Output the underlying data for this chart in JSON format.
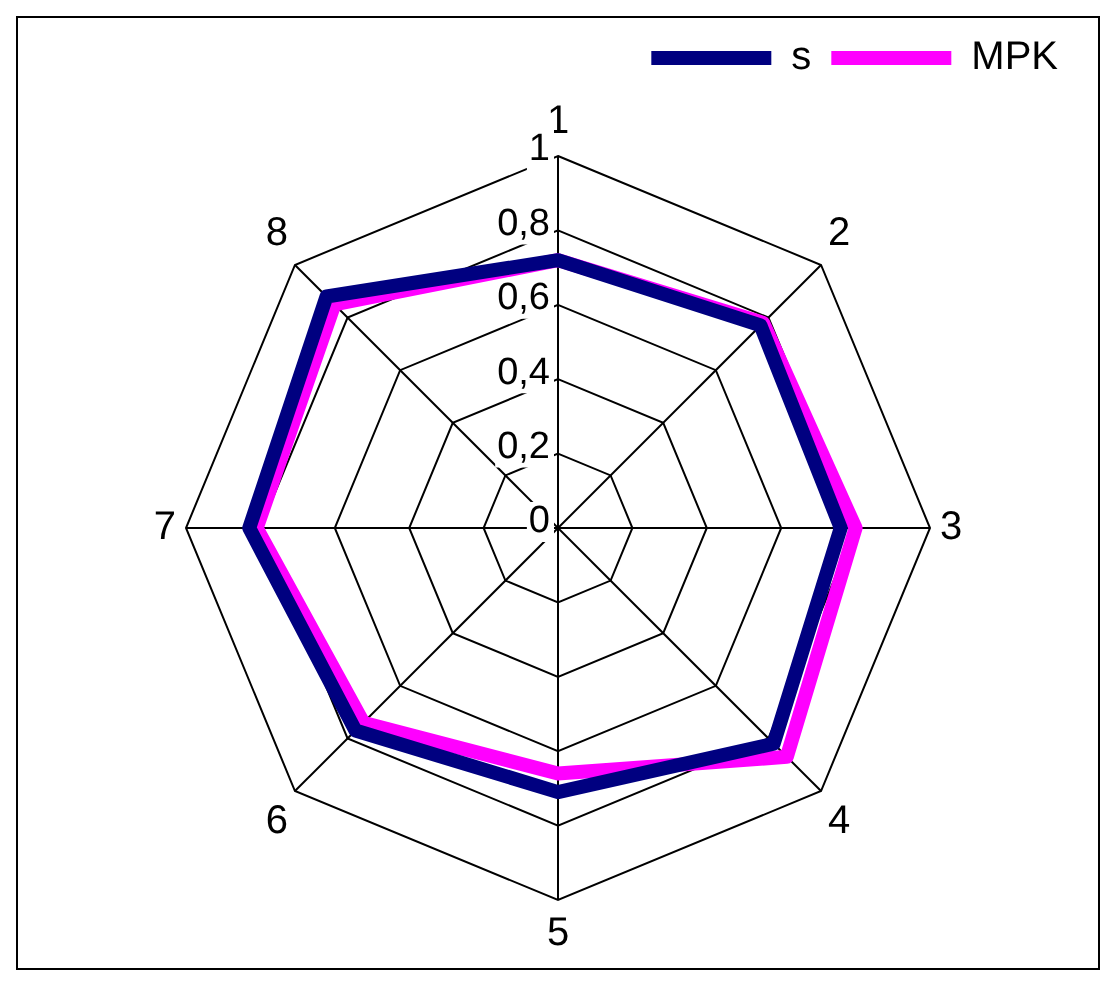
{
  "chart_data": {
    "type": "radar",
    "categories": [
      "1",
      "2",
      "3",
      "4",
      "5",
      "6",
      "7",
      "8"
    ],
    "series": [
      {
        "name": "s",
        "color": "#000080",
        "values": [
          0.72,
          0.77,
          0.76,
          0.82,
          0.71,
          0.77,
          0.83,
          0.88
        ]
      },
      {
        "name": "MPK",
        "color": "#ff00ff",
        "values": [
          0.72,
          0.78,
          0.8,
          0.87,
          0.66,
          0.74,
          0.81,
          0.85
        ]
      }
    ],
    "ylim": [
      0,
      1
    ],
    "yticks": [
      0,
      {
        "value": 0.2,
        "label": "0,2"
      },
      {
        "value": 0.4,
        "label": "0,4"
      },
      {
        "value": 0.6,
        "label": "0,6"
      },
      {
        "value": 0.8,
        "label": "0,8"
      },
      1
    ],
    "grid": true,
    "legend": "top right",
    "marker": "none",
    "line_style": "solid"
  }
}
